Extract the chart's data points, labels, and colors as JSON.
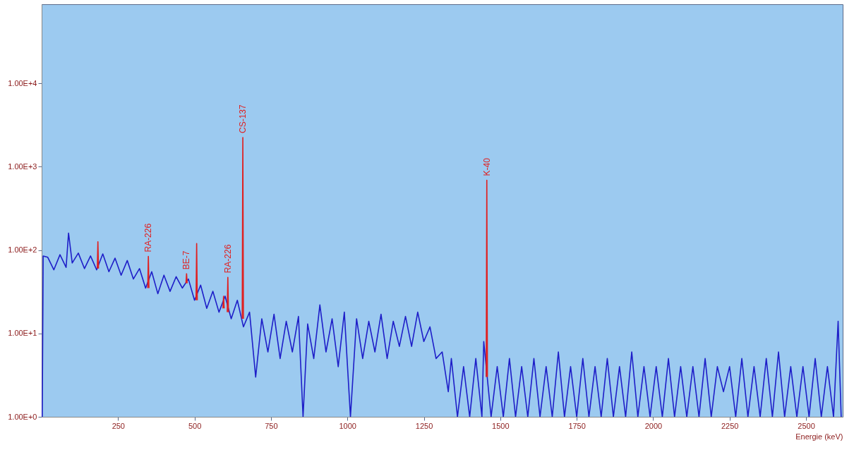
{
  "chart_data": {
    "type": "line",
    "xlabel": "Energie (keV)",
    "log": "y",
    "xlim": [
      0,
      2620
    ],
    "xticks": [
      250,
      500,
      750,
      1000,
      1250,
      1500,
      1750,
      2000,
      2250,
      2500
    ],
    "ylim": [
      1,
      89000
    ],
    "yticks": [
      {
        "value": 1,
        "label": "1.00E+0"
      },
      {
        "value": 10,
        "label": "1.00E+1"
      },
      {
        "value": 100,
        "label": "1.00E+2"
      },
      {
        "value": 1000,
        "label": "1.00E+3"
      },
      {
        "value": 10000,
        "label": "1.00E+4"
      }
    ],
    "grid": false,
    "line_style": "solid",
    "marker": "none",
    "series": [
      {
        "color": "#1e1ec8",
        "x": [
          2,
          5,
          20,
          40,
          60,
          80,
          88,
          100,
          120,
          140,
          160,
          180,
          200,
          220,
          240,
          260,
          280,
          300,
          320,
          340,
          360,
          380,
          400,
          420,
          440,
          460,
          480,
          500,
          520,
          540,
          560,
          580,
          600,
          620,
          640,
          660,
          680,
          700,
          720,
          740,
          760,
          780,
          800,
          820,
          840,
          855,
          870,
          890,
          910,
          930,
          950,
          970,
          990,
          1010,
          1030,
          1050,
          1070,
          1090,
          1110,
          1130,
          1150,
          1170,
          1190,
          1210,
          1230,
          1250,
          1270,
          1290,
          1310,
          1330,
          1340,
          1360,
          1380,
          1400,
          1420,
          1440,
          1446,
          1470,
          1490,
          1510,
          1530,
          1550,
          1570,
          1590,
          1610,
          1630,
          1650,
          1670,
          1690,
          1710,
          1730,
          1750,
          1770,
          1790,
          1810,
          1830,
          1850,
          1870,
          1890,
          1910,
          1930,
          1950,
          1970,
          1990,
          2010,
          2030,
          2050,
          2070,
          2090,
          2110,
          2130,
          2150,
          2170,
          2190,
          2210,
          2230,
          2250,
          2270,
          2290,
          2310,
          2330,
          2350,
          2370,
          2390,
          2410,
          2430,
          2450,
          2470,
          2490,
          2510,
          2530,
          2550,
          2570,
          2590,
          2605,
          2615
        ],
        "values": [
          1,
          85,
          82,
          58,
          88,
          62,
          160,
          70,
          92,
          60,
          85,
          58,
          90,
          55,
          80,
          50,
          75,
          45,
          60,
          35,
          55,
          30,
          50,
          32,
          48,
          35,
          45,
          25,
          38,
          20,
          32,
          18,
          28,
          15,
          25,
          12,
          18,
          3,
          15,
          6,
          17,
          5,
          14,
          6,
          16,
          1,
          13,
          5,
          22,
          6,
          15,
          4,
          18,
          1,
          15,
          5,
          14,
          6,
          17,
          5,
          14,
          7,
          16,
          7,
          18,
          8,
          12,
          5,
          6,
          2,
          5,
          1,
          4,
          1,
          5,
          1,
          8,
          1,
          4,
          1,
          5,
          1,
          4,
          1,
          5,
          1,
          4,
          1,
          6,
          1,
          4,
          1,
          5,
          1,
          4,
          1,
          5,
          1,
          4,
          1,
          6,
          1,
          4,
          1,
          4,
          1,
          5,
          1,
          4,
          1,
          4,
          1,
          5,
          1,
          4,
          2,
          4,
          1,
          5,
          1,
          4,
          1,
          5,
          1,
          6,
          1,
          4,
          1,
          4,
          1,
          5,
          1,
          4,
          1,
          14,
          1
        ]
      },
      {
        "color": "#e02020",
        "x": [
          182,
          184,
          186,
          187,
          347,
          349,
          351,
          352,
          472,
          474,
          476,
          477,
          505,
          507,
          509,
          510,
          593,
          595,
          597,
          598,
          607,
          609,
          611,
          612,
          656,
          658,
          660,
          661,
          1454,
          1456,
          1458
        ],
        "values": [
          60,
          126,
          60,
          null,
          35,
          84,
          35,
          null,
          40,
          52,
          40,
          null,
          25,
          120,
          25,
          null,
          20,
          28,
          20,
          null,
          18,
          47,
          18,
          null,
          15,
          2240,
          15,
          null,
          3,
          690,
          3
        ]
      }
    ],
    "annotations": [
      {
        "text": "RA-226",
        "x": 349,
        "y": 84
      },
      {
        "text": "BE-7",
        "x": 474,
        "y": 52
      },
      {
        "text": "RA-226",
        "x": 609,
        "y": 47
      },
      {
        "text": "CS-137",
        "x": 658,
        "y": 2240
      },
      {
        "text": "K-40",
        "x": 1456,
        "y": 690
      }
    ]
  }
}
